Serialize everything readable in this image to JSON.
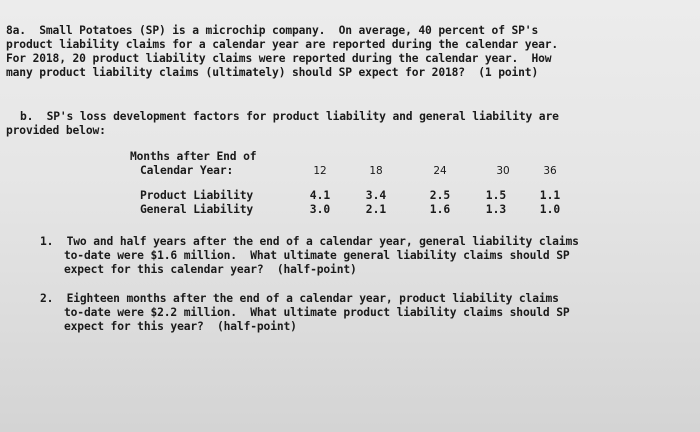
{
  "q8a": {
    "lines": [
      "8a.  Small Potatoes (SP) is a microchip company.  On average, 40 percent of SP's",
      "product liability claims for a calendar year are reported during the calendar year.",
      "For 2018, 20 product liability claims were reported during the calendar year.  How",
      "many product liability claims (ultimately) should SP expect for 2018?  (1 point)"
    ]
  },
  "q8b": {
    "lines": [
      "b.  SP's loss development factors for product liability and general liability are",
      "provided below:"
    ]
  },
  "table": {
    "header_line1": "Months after End of",
    "header_line2": "Calendar Year:",
    "months": [
      "12",
      "18",
      "24",
      "30",
      "36"
    ],
    "rows": [
      {
        "label": "Product Liability",
        "values": [
          "4.1",
          "3.4",
          "2.5",
          "1.5",
          "1.1"
        ]
      },
      {
        "label": "General Liability",
        "values": [
          "3.0",
          "2.1",
          "1.6",
          "1.3",
          "1.0"
        ]
      }
    ]
  },
  "sub1": {
    "lines": [
      "1.  Two and half years after the end of a calendar year, general liability claims",
      "to-date were $1.6 million.  What ultimate general liability claims should SP",
      "expect for this calendar year?  (half-point)"
    ]
  },
  "sub2": {
    "lines": [
      "2.  Eighteen months after the end of a calendar year, product liability claims",
      "to-date were $2.2 million.  What ultimate product liability claims should SP",
      "expect for this year?  (half-point)"
    ]
  }
}
